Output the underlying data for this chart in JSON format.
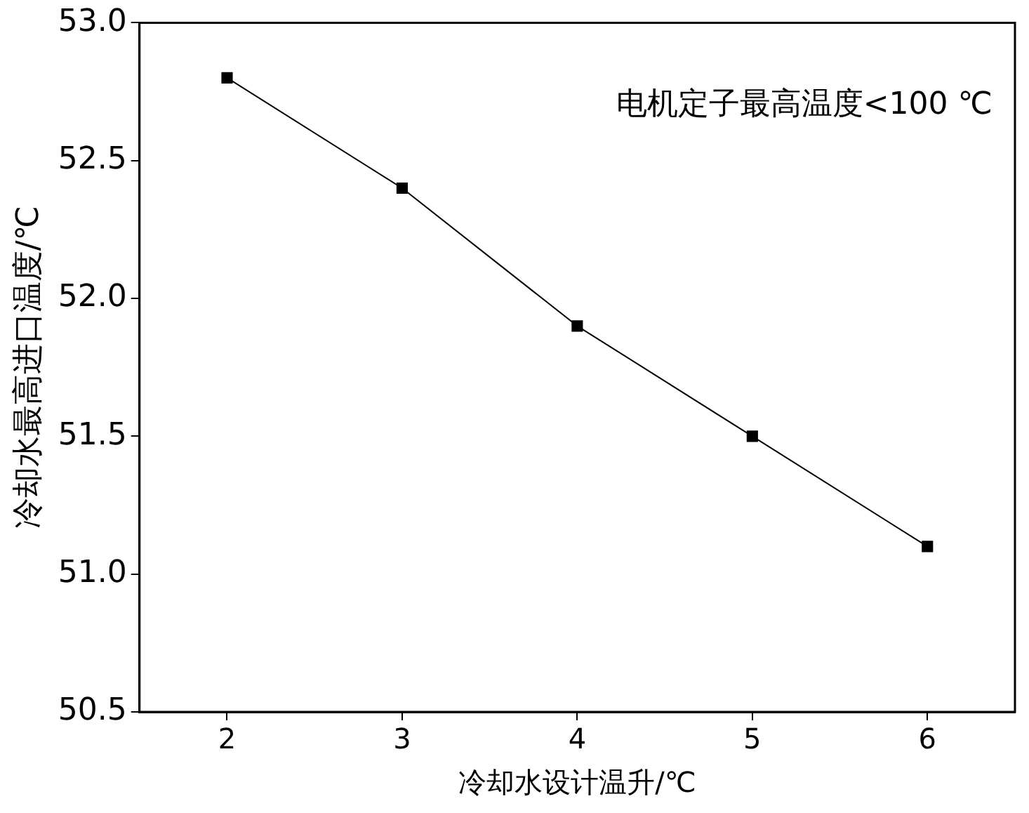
{
  "chart_data": {
    "type": "line",
    "xlabel": "冷却水设计温升/℃",
    "ylabel": "冷却水最高进口温度/℃",
    "x": [
      2,
      3,
      4,
      5,
      6
    ],
    "series": [
      {
        "color": "#000000",
        "values": [
          52.8,
          52.4,
          51.9,
          51.5,
          51.1
        ]
      }
    ],
    "xlim": [
      1.5,
      6.5
    ],
    "xticks": [
      2,
      3,
      4,
      5,
      6
    ],
    "ylim": [
      50.5,
      53.0
    ],
    "yticks": [
      {
        "value": 50.5,
        "label": "50.5"
      },
      {
        "value": 51,
        "label": "51.0"
      },
      {
        "value": 51.5,
        "label": "51.5"
      },
      {
        "value": 52,
        "label": "52.0"
      },
      {
        "value": 52.5,
        "label": "52.5"
      },
      {
        "value": 53,
        "label": "53.0"
      }
    ],
    "annotations": [
      "电机定子最高温度<100 ℃"
    ],
    "grid": false,
    "legend": false,
    "marker": "square",
    "line_style": "solid"
  }
}
